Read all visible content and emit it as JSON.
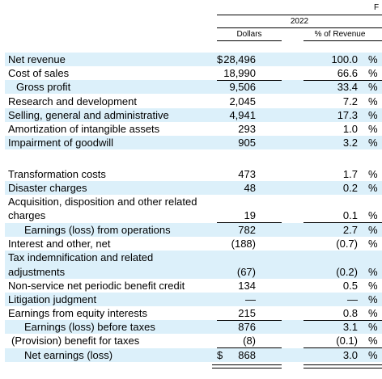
{
  "header": {
    "corner_letter": "F",
    "year": "2022",
    "col_dollars": "Dollars",
    "col_pct": "% of Revenue"
  },
  "symbols": {
    "dollar": "$",
    "percent": "%"
  },
  "rows": [
    {
      "label": "Net revenue",
      "dollars": "28,496",
      "pct": "100.0"
    },
    {
      "label": "Cost of sales",
      "dollars": "18,990",
      "pct": "66.6"
    },
    {
      "label": "Gross profit",
      "dollars": "9,506",
      "pct": "33.4"
    },
    {
      "label": "Research and development",
      "dollars": "2,045",
      "pct": "7.2"
    },
    {
      "label": "Selling, general and administrative",
      "dollars": "4,941",
      "pct": "17.3"
    },
    {
      "label": "Amortization of intangible assets",
      "dollars": "293",
      "pct": "1.0"
    },
    {
      "label": "Impairment of goodwill",
      "dollars": "905",
      "pct": "3.2"
    },
    {
      "label": "Transformation costs",
      "dollars": "473",
      "pct": "1.7"
    },
    {
      "label": "Disaster charges",
      "dollars": "48",
      "pct": "0.2"
    },
    {
      "label_line1": "Acquisition, disposition and other related",
      "label_line2": "charges",
      "dollars": "19",
      "pct": "0.1"
    },
    {
      "label": "Earnings (loss) from operations",
      "dollars": "782",
      "pct": "2.7"
    },
    {
      "label": "Interest and other, net",
      "dollars": "(188)",
      "pct": "(0.7)"
    },
    {
      "label_line1": "Tax indemnification and related",
      "label_line2": "adjustments",
      "dollars": "(67)",
      "pct": "(0.2)"
    },
    {
      "label": "Non-service net periodic benefit credit",
      "dollars": "134",
      "pct": "0.5"
    },
    {
      "label": "Litigation judgment",
      "dollars": "—",
      "pct": "—"
    },
    {
      "label": "Earnings from equity interests",
      "dollars": "215",
      "pct": "0.8"
    },
    {
      "label": "Earnings (loss) before taxes",
      "dollars": "876",
      "pct": "3.1"
    },
    {
      "label": "(Provision) benefit for taxes",
      "dollars": "(8)",
      "pct": "(0.1)"
    },
    {
      "label": "Net earnings (loss)",
      "dollars": "868",
      "pct": "3.0"
    }
  ]
}
